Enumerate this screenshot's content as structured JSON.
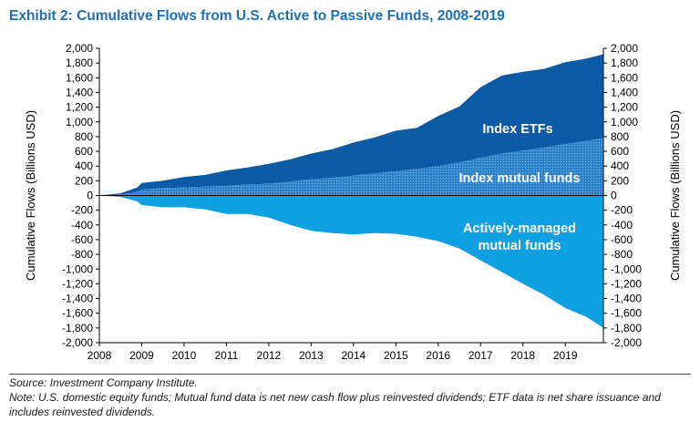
{
  "title": "Exhibit 2: Cumulative Flows from U.S. Active to Passive Funds, 2008-2019",
  "source": "Source: Investment Company Institute.",
  "note": "Note: U.S. domestic equity funds; Mutual fund data is net new cash flow plus reinvested dividends; ETF data is net share issuance and includes reinvested dividends.",
  "colors": {
    "title": "#1f6fb5",
    "etf": "#0b5aa6",
    "index_mf": "#2f86cf",
    "active": "#0ea0e0",
    "label": "#ffffff"
  },
  "chart_data": {
    "type": "area",
    "title": "",
    "ylabel_left": "Cumulative Flows (Billions USD)",
    "ylabel_right": "Cumulative Flows (Billions USD)",
    "xlabel": "",
    "ylim": [
      -2000,
      2000
    ],
    "xlim": [
      2008,
      2019.9
    ],
    "y_ticks": [
      2000,
      1800,
      1600,
      1400,
      1200,
      1000,
      800,
      600,
      400,
      200,
      0,
      -200,
      -400,
      -600,
      -800,
      -1000,
      -1200,
      -1400,
      -1600,
      -1800,
      -2000
    ],
    "y_tick_labels": [
      "2,000",
      "1,800",
      "1,600",
      "1,400",
      "1,200",
      "1,000",
      "800",
      "600",
      "400",
      "200",
      "0",
      "-200",
      "-400",
      "-600",
      "-800",
      "-1,000",
      "-1,200",
      "-1,400",
      "-1,600",
      "-1,800",
      "-2,000"
    ],
    "x_ticks": [
      2008,
      2009,
      2010,
      2011,
      2012,
      2013,
      2014,
      2015,
      2016,
      2017,
      2018,
      2019
    ],
    "x_tick_labels": [
      "2008",
      "2009",
      "2010",
      "2011",
      "2012",
      "2013",
      "2014",
      "2015",
      "2016",
      "2017",
      "2018",
      "2019"
    ],
    "x": [
      2008,
      2008.5,
      2008.9,
      2009,
      2009.5,
      2010,
      2010.5,
      2011,
      2011.5,
      2012,
      2012.5,
      2013,
      2013.5,
      2014,
      2014.5,
      2015,
      2015.5,
      2016,
      2016.5,
      2017,
      2017.5,
      2018,
      2018.5,
      2019,
      2019.5,
      2019.9
    ],
    "series": [
      {
        "name": "Index mutual funds",
        "values": [
          0,
          10,
          50,
          80,
          100,
          110,
          120,
          130,
          150,
          160,
          190,
          220,
          240,
          270,
          300,
          330,
          360,
          400,
          450,
          510,
          570,
          610,
          650,
          700,
          740,
          780
        ]
      },
      {
        "name": "Index ETFs",
        "values": [
          0,
          20,
          60,
          90,
          100,
          140,
          160,
          210,
          230,
          270,
          300,
          350,
          390,
          450,
          490,
          550,
          560,
          680,
          760,
          960,
          1060,
          1070,
          1070,
          1110,
          1120,
          1140
        ]
      },
      {
        "name": "Actively-managed mutual funds",
        "values": [
          0,
          -20,
          -80,
          -130,
          -160,
          -160,
          -190,
          -250,
          -250,
          -300,
          -400,
          -480,
          -510,
          -530,
          -510,
          -520,
          -560,
          -620,
          -720,
          -880,
          -1040,
          -1200,
          -1350,
          -1530,
          -1650,
          -1800
        ]
      }
    ],
    "annotations": [
      "Index ETFs",
      "Index mutual funds",
      "Actively-managed",
      "mutual funds"
    ],
    "grid": false,
    "legend": "none"
  }
}
